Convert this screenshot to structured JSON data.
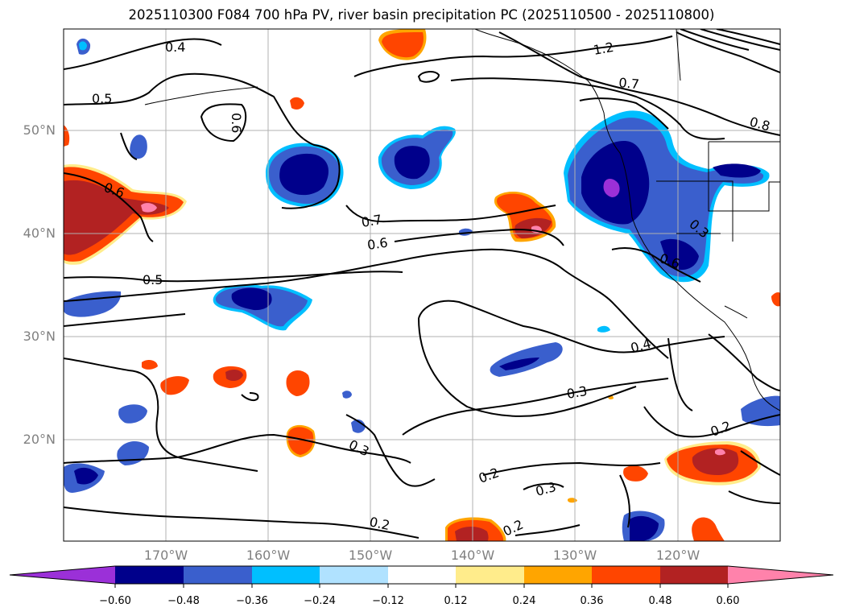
{
  "title": "2025110300 F084 700 hPa PV, river basin precipitation PC (2025110500 - 2025110800)",
  "map": {
    "lat_labels": [
      "50°N",
      "40°N",
      "30°N",
      "20°N"
    ],
    "lon_labels": [
      "170°W",
      "160°W",
      "150°W",
      "140°W",
      "130°W",
      "120°W"
    ],
    "gridline_color": "#b0b0b0",
    "label_color": "#808080"
  },
  "contour_labels": [
    {
      "id": "c1",
      "text": "0.4"
    },
    {
      "id": "c2",
      "text": "0.5"
    },
    {
      "id": "c3",
      "text": "0.6"
    },
    {
      "id": "c4",
      "text": "0.6"
    },
    {
      "id": "c5",
      "text": "0.5"
    },
    {
      "id": "c6",
      "text": "0.7"
    },
    {
      "id": "c7",
      "text": "0.6"
    },
    {
      "id": "c8",
      "text": "1.2"
    },
    {
      "id": "c9",
      "text": "0.7"
    },
    {
      "id": "c10",
      "text": "0.8"
    },
    {
      "id": "c11",
      "text": "0.4"
    },
    {
      "id": "c12",
      "text": "0.3"
    },
    {
      "id": "c13",
      "text": "0.3"
    },
    {
      "id": "c14",
      "text": "0.2"
    },
    {
      "id": "c15",
      "text": "0.3"
    },
    {
      "id": "c16",
      "text": "0.2"
    },
    {
      "id": "c17",
      "text": "0.2"
    },
    {
      "id": "c18",
      "text": "0.2"
    },
    {
      "id": "c19",
      "text": "0.6"
    },
    {
      "id": "c20",
      "text": "0.3"
    }
  ],
  "colorbar": {
    "colors": [
      "#9b30d8",
      "#00008b",
      "#3a5fcd",
      "#00bfff",
      "#b0e2ff",
      "#ffffff",
      "#ffec8b",
      "#ffa500",
      "#ff4500",
      "#b22222",
      "#ff82ab"
    ],
    "tick_labels": [
      "−0.60",
      "−0.48",
      "−0.36",
      "−0.24",
      "−0.12",
      "0.12",
      "0.24",
      "0.36",
      "0.48",
      "0.60"
    ]
  },
  "palette": {
    "neg_deep": "#00008b",
    "neg_mid": "#3a5fcd",
    "neg_light": "#00bfff",
    "neg_min": "#9b30d8",
    "pos_mid": "#ff4500",
    "pos_deep": "#b22222",
    "pos_max": "#ff82ab",
    "pos_light": "#ffa500",
    "pos_min": "#ffec8b"
  }
}
